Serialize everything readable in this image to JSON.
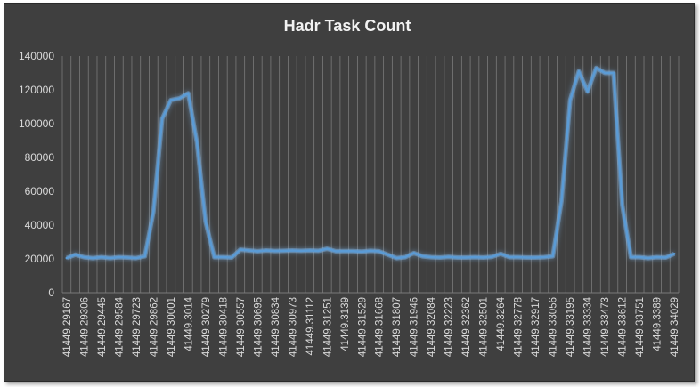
{
  "chart_data": {
    "type": "line",
    "title": "Hadr Task Count",
    "xlabel": "",
    "ylabel": "",
    "ylim": [
      0,
      140000
    ],
    "yticks": [
      "0",
      "20000",
      "40000",
      "60000",
      "80000",
      "100000",
      "120000",
      "140000"
    ],
    "grid": "vertical gridlines at each category",
    "legend": "none",
    "colors": {
      "background": "#3f3f3f",
      "line": "#5b9bd5",
      "grid": "#7a7a7a",
      "text": "#d9d9d9",
      "title": "#f2f2f2"
    },
    "x_tick_labels": [
      "41449.29167",
      "41449.29306",
      "41449.29445",
      "41449.29584",
      "41449.29723",
      "41449.29862",
      "41449.30001",
      "41449.3014",
      "41449.30279",
      "41449.30418",
      "41449.30557",
      "41449.30695",
      "41449.30834",
      "41449.30973",
      "41449.31112",
      "41449.31251",
      "41449.3139",
      "41449.31529",
      "41449.31668",
      "41449.31807",
      "41449.31946",
      "41449.32084",
      "41449.32223",
      "41449.32362",
      "41449.32501",
      "41449.3264",
      "41449.32778",
      "41449.32917",
      "41449.33056",
      "41449.33195",
      "41449.33334",
      "41449.33473",
      "41449.33612",
      "41449.33751",
      "41449.3389",
      "41449.34029"
    ],
    "series": [
      {
        "values": [
          20500,
          22500,
          21000,
          20500,
          21000,
          20500,
          21000,
          20800,
          20500,
          21500,
          48000,
          103000,
          114000,
          115000,
          118000,
          89000,
          42000,
          21000,
          21000,
          20800,
          25500,
          25000,
          24500,
          25000,
          24700,
          24800,
          25000,
          24800,
          25000,
          24800,
          26000,
          24500,
          24600,
          24600,
          24300,
          24800,
          24500,
          22500,
          20500,
          21000,
          23500,
          21500,
          21000,
          20800,
          21200,
          20800,
          20800,
          21000,
          20800,
          21200,
          23000,
          21000,
          21000,
          20800,
          20800,
          21000,
          21500,
          54000,
          114000,
          131000,
          119000,
          133000,
          130000,
          130000,
          52000,
          21000,
          21000,
          20500,
          21000,
          20800,
          23000
        ]
      }
    ]
  }
}
